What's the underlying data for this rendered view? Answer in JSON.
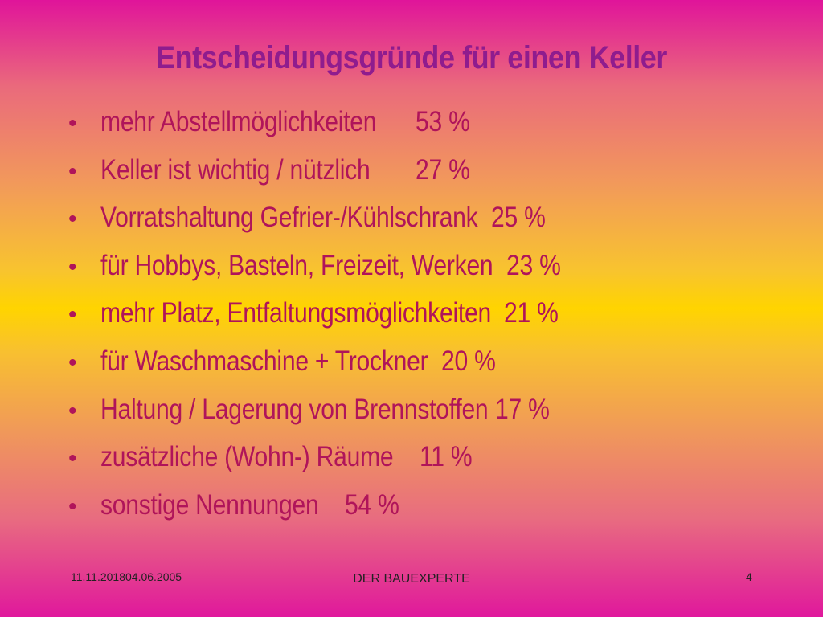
{
  "slide": {
    "title": "Entscheidungsgründe für einen Keller",
    "bullets": [
      {
        "label": "mehr Abstellmöglichkeiten      ",
        "value": "53 %"
      },
      {
        "label": "Keller ist wichtig / nützlich       ",
        "value": "27 %"
      },
      {
        "label": "Vorratshaltung Gefrier-/Kühlschrank  ",
        "value": "25 %"
      },
      {
        "label": "für Hobbys, Basteln, Freizeit, Werken  ",
        "value": "23 %"
      },
      {
        "label": "mehr Platz, Entfaltungsmöglichkeiten  ",
        "value": "21 %"
      },
      {
        "label": "für Waschmaschine + Trockner  ",
        "value": "20 %"
      },
      {
        "label": "Haltung / Lagerung von Brennstoffen ",
        "value": "17 %"
      },
      {
        "label": "zusätzliche (Wohn-) Räume    ",
        "value": "11 %"
      },
      {
        "label": "sonstige Nennungen    ",
        "value": "54 %"
      }
    ]
  },
  "footer": {
    "date": "11.11.201804.06.2005",
    "center": "DER BAUEXPERTE",
    "page": "4"
  },
  "colors": {
    "title": "#8f1c8e",
    "text": "#b0145a",
    "gradient_top": "#e0149a",
    "gradient_middle": "#ffd400"
  }
}
